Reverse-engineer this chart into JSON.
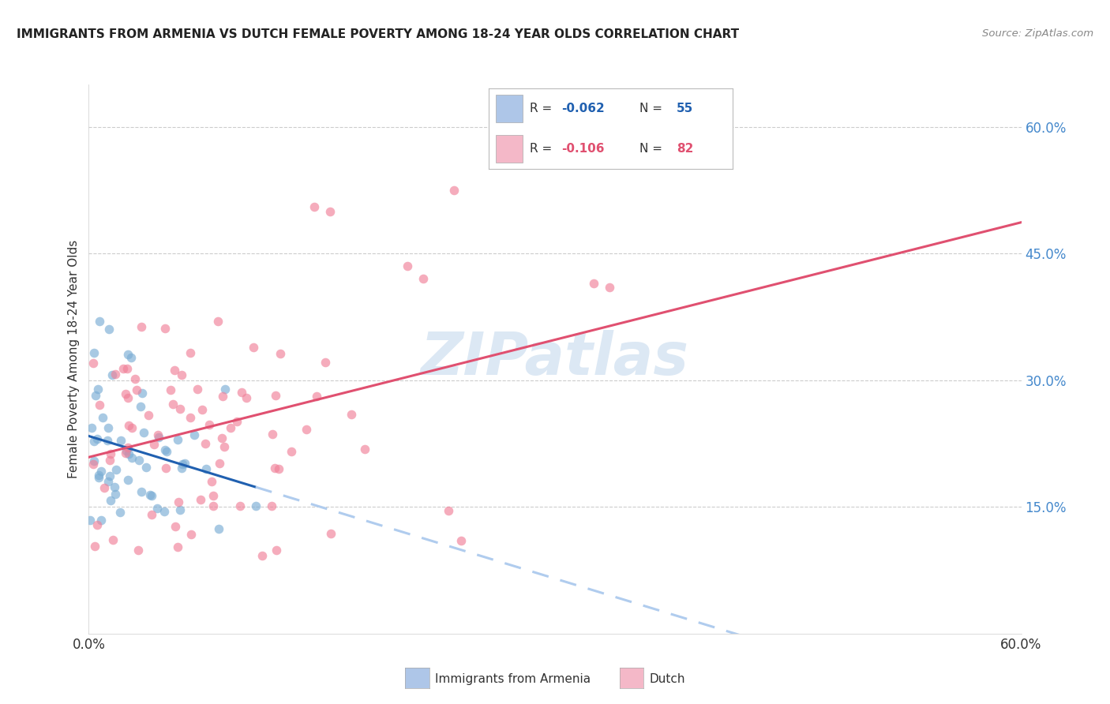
{
  "title": "IMMIGRANTS FROM ARMENIA VS DUTCH FEMALE POVERTY AMONG 18-24 YEAR OLDS CORRELATION CHART",
  "source": "Source: ZipAtlas.com",
  "ylabel": "Female Poverty Among 18-24 Year Olds",
  "xlim": [
    0.0,
    0.6
  ],
  "ylim": [
    0.0,
    0.65
  ],
  "yticks": [
    0.15,
    0.3,
    0.45,
    0.6
  ],
  "ytick_labels": [
    "15.0%",
    "30.0%",
    "45.0%",
    "60.0%"
  ],
  "xticks": [
    0.0,
    0.12,
    0.24,
    0.36,
    0.48,
    0.6
  ],
  "xtick_labels": [
    "0.0%",
    "",
    "",
    "",
    "",
    "60.0%"
  ],
  "legend_color1": "#aec6e8",
  "legend_color2": "#f4b8c8",
  "scatter_color1": "#7aadd4",
  "scatter_color2": "#f08098",
  "line_color1": "#2060b0",
  "line_color2": "#e05070",
  "line_dash_color": "#b0ccee",
  "watermark": "ZIPatlas",
  "background_color": "#ffffff",
  "grid_color": "#cccccc",
  "title_color": "#222222",
  "source_color": "#888888",
  "ytick_color": "#4488cc",
  "xtick_color": "#333333",
  "ylabel_color": "#333333"
}
